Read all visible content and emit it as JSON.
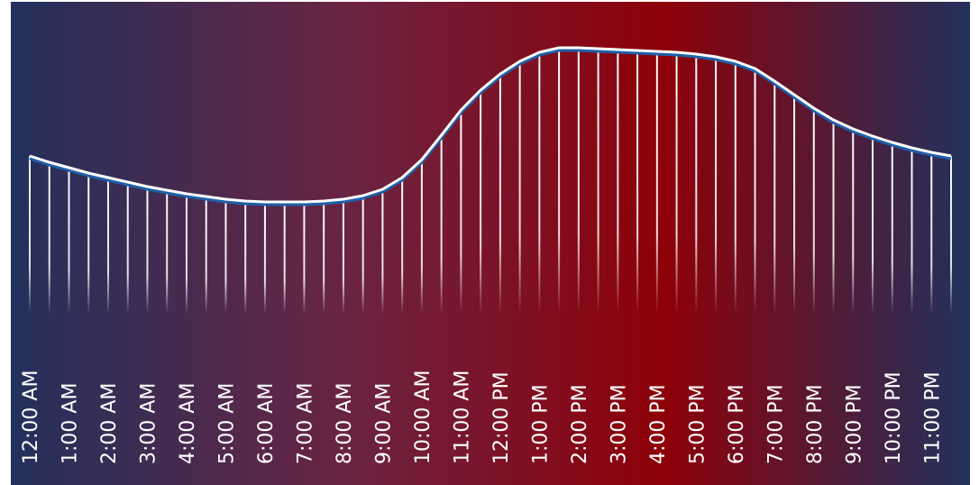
{
  "chart_data": {
    "type": "line",
    "categories": [
      "12:00 AM",
      null,
      "1:00 AM",
      null,
      "2:00 AM",
      null,
      "3:00 AM",
      null,
      "4:00 AM",
      null,
      "5:00 AM",
      null,
      "6:00 AM",
      null,
      "7:00 AM",
      null,
      "8:00 AM",
      null,
      "9:00 AM",
      null,
      "10:00 AM",
      null,
      "11:00 AM",
      null,
      "12:00 PM",
      null,
      "1:00 PM",
      null,
      "2:00 PM",
      null,
      "3:00 PM",
      null,
      "4:00 PM",
      null,
      "5:00 PM",
      null,
      "6:00 PM",
      null,
      "7:00 PM",
      null,
      "8:00 PM",
      null,
      "9:00 PM",
      null,
      "10:00 PM",
      null,
      "11:00 PM",
      null
    ],
    "values": [
      167,
      160,
      154,
      148,
      143,
      138,
      133,
      129,
      125,
      122,
      119,
      117,
      116,
      116,
      116,
      117,
      119,
      123,
      130,
      143,
      163,
      190,
      218,
      240,
      258,
      272,
      282,
      287,
      287,
      286,
      285,
      284,
      283,
      282,
      280,
      277,
      272,
      264,
      250,
      235,
      220,
      207,
      197,
      189,
      182,
      176,
      171,
      167
    ],
    "color": "#ffffff",
    "ylim": [
      0,
      300
    ]
  }
}
